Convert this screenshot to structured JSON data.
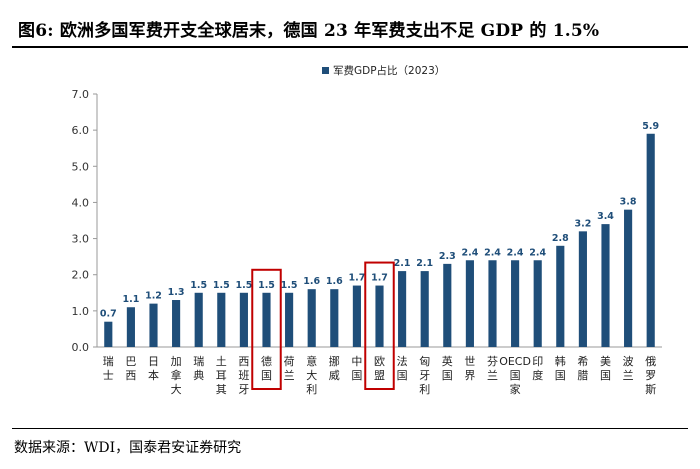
{
  "header": {
    "title": "图6: 欧洲多国军费开支全球居末，德国 23 年军费支出不足 GDP 的 1.5%"
  },
  "footer": {
    "source": "数据来源：WDI，国泰君安证券研究"
  },
  "colors": {
    "bar": "#1f4e79",
    "highlight": "#c00000",
    "axis": "#999999"
  },
  "chart_data": {
    "type": "bar",
    "legend": {
      "label": "军费GDP占比（2023）",
      "position": "top-center"
    },
    "categories": [
      "瑞士",
      "巴西",
      "日本",
      "加拿大",
      "瑞典",
      "土耳其",
      "西班牙",
      "德国",
      "荷兰",
      "意大利",
      "挪威",
      "中国",
      "欧盟",
      "法国",
      "匈牙利",
      "英国",
      "世界",
      "芬兰",
      "OECD国家",
      "印度",
      "韩国",
      "希腊",
      "美国",
      "波兰",
      "俄罗斯"
    ],
    "values": [
      0.7,
      1.1,
      1.2,
      1.3,
      1.5,
      1.5,
      1.5,
      1.5,
      1.5,
      1.6,
      1.6,
      1.7,
      1.7,
      2.1,
      2.1,
      2.3,
      2.4,
      2.4,
      2.4,
      2.4,
      2.8,
      3.2,
      3.4,
      3.8,
      5.9
    ],
    "value_labels": [
      "0.7",
      "1.1",
      "1.2",
      "1.3",
      "1.5",
      "1.5",
      "1.5",
      "1.5",
      "1.5",
      "1.6",
      "1.6",
      "1.7",
      "1.7",
      "2.1",
      "2.1",
      "2.3",
      "2.4",
      "2.4",
      "2.4",
      "2.4",
      "2.8",
      "3.2",
      "3.4",
      "3.8",
      "5.9"
    ],
    "highlighted": [
      "德国",
      "欧盟"
    ],
    "ylim": [
      0,
      7
    ],
    "yticks": [
      "0.0",
      "1.0",
      "2.0",
      "3.0",
      "4.0",
      "5.0",
      "6.0",
      "7.0"
    ],
    "xlabel": "",
    "ylabel": "",
    "grid": false
  }
}
